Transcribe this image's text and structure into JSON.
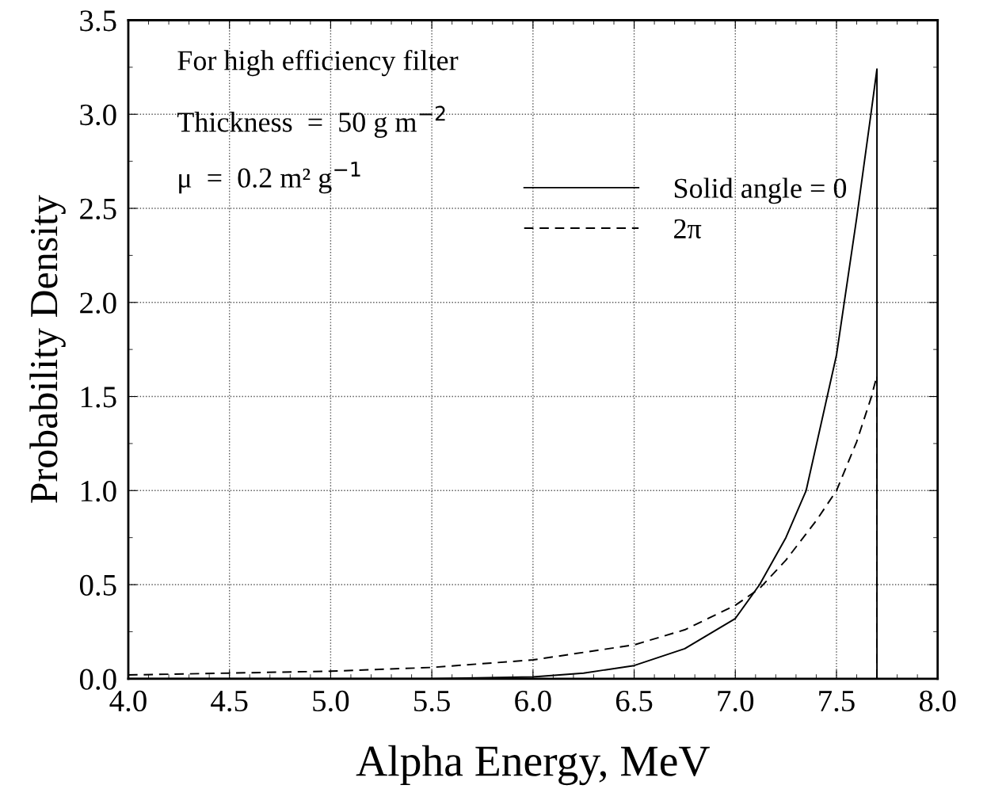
{
  "chart_data": {
    "type": "line",
    "xlabel": "Alpha Energy, MeV",
    "ylabel": "Probability Density",
    "series": [
      {
        "name": "Solid angle = 0",
        "color": "#000000",
        "line_style": "solid",
        "x": [
          4.0,
          5.0,
          5.5,
          6.0,
          6.25,
          6.5,
          6.75,
          7.0,
          7.12,
          7.25,
          7.35,
          7.5,
          7.6,
          7.67,
          7.7,
          7.7
        ],
        "values": [
          0.0,
          0.0,
          0.0,
          0.01,
          0.03,
          0.07,
          0.16,
          0.32,
          0.5,
          0.75,
          1.0,
          1.72,
          2.45,
          3.0,
          3.24,
          0.0
        ]
      },
      {
        "name": "2π",
        "color": "#000000",
        "line_style": "dashed",
        "x": [
          4.0,
          4.5,
          5.0,
          5.5,
          6.0,
          6.5,
          6.75,
          7.0,
          7.12,
          7.25,
          7.4,
          7.5,
          7.6,
          7.67,
          7.7,
          7.7
        ],
        "values": [
          0.02,
          0.03,
          0.04,
          0.06,
          0.1,
          0.18,
          0.26,
          0.39,
          0.48,
          0.63,
          0.84,
          1.0,
          1.26,
          1.49,
          1.61,
          0.0
        ]
      }
    ],
    "xlim": [
      4.0,
      8.0
    ],
    "ylim": [
      0.0,
      3.5
    ],
    "xticks": [
      {
        "value": 4.0,
        "label": "4.0"
      },
      4.5,
      {
        "value": 5.0,
        "label": "5.0"
      },
      5.5,
      {
        "value": 6.0,
        "label": "6.0"
      },
      6.5,
      {
        "value": 7.0,
        "label": "7.0"
      },
      7.5,
      {
        "value": 8.0,
        "label": "8.0"
      }
    ],
    "yticks": [
      {
        "value": 0.0,
        "label": "0.0"
      },
      0.5,
      {
        "value": 1.0,
        "label": "1.0"
      },
      1.5,
      {
        "value": 2.0,
        "label": "2.0"
      },
      2.5,
      {
        "value": 3.0,
        "label": "3.0"
      },
      3.5
    ],
    "grid": true,
    "legend": "top right",
    "marker": "none",
    "annotations": [
      "For high efficiency filter",
      "Thickness  =  50 g m$^{−2}$",
      "μ  =  0.2 m² g$^{−1}$"
    ]
  }
}
